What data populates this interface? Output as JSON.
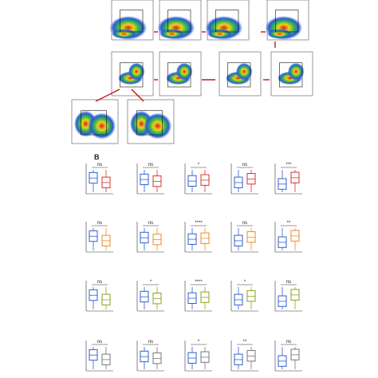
{
  "panel_label": "B",
  "significance": [
    [
      "ns",
      "ns",
      "*",
      "ns",
      "***"
    ],
    [
      "ns",
      "ns",
      "****",
      "ns",
      "**"
    ],
    [
      "ns",
      "*",
      "****",
      "*",
      "ns"
    ],
    [
      "ns",
      "ns",
      "*",
      "**",
      "ns"
    ]
  ]
}
